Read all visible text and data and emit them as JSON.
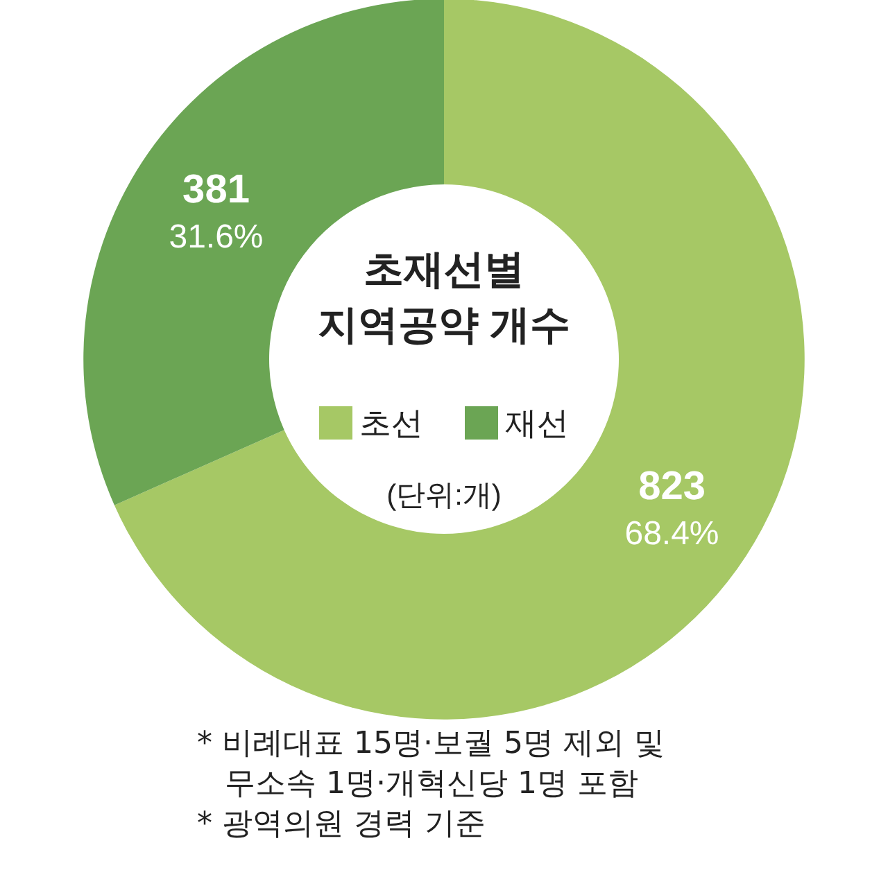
{
  "chart_data": {
    "type": "donut",
    "title": "초재선별\n지역공약 개수",
    "subtitle": "(단위:개)",
    "categories": [
      "초선",
      "재선"
    ],
    "values": [
      823,
      381
    ],
    "colors": [
      "#a6c865",
      "#6ba554"
    ],
    "value_labels": [
      "823\n68.4%",
      "381\n31.6%"
    ],
    "legend": "center",
    "annotations": [
      "* 비례대표 15명·보궐 5명 제외 및 무소속 1명·개혁신당 1명 포함",
      "* 광역의원 경력 기준"
    ]
  }
}
